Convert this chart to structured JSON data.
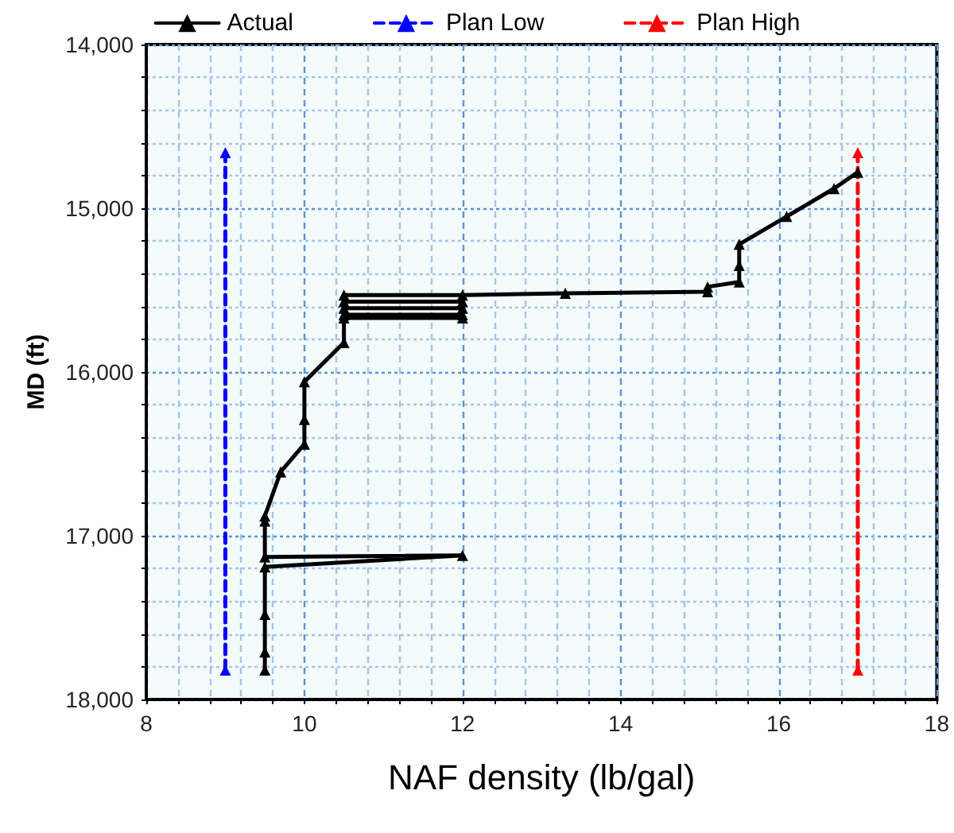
{
  "chart_data": {
    "type": "line",
    "xlabel": "NAF density (lb/gal)",
    "ylabel": "MD (ft)",
    "xlim": [
      8,
      18
    ],
    "xticks": [
      8,
      {
        "value": 8.4,
        "label": null
      },
      {
        "value": 8.8,
        "label": null
      },
      {
        "value": 9.2,
        "label": null
      },
      {
        "value": 9.6,
        "label": null
      },
      10,
      {
        "value": 10.4,
        "label": null
      },
      {
        "value": 10.8,
        "label": null
      },
      {
        "value": 11.2,
        "label": null
      },
      {
        "value": 11.6,
        "label": null
      },
      12,
      {
        "value": 12.4,
        "label": null
      },
      {
        "value": 12.8,
        "label": null
      },
      {
        "value": 13.2,
        "label": null
      },
      {
        "value": 13.6,
        "label": null
      },
      14,
      {
        "value": 14.4,
        "label": null
      },
      {
        "value": 14.8,
        "label": null
      },
      {
        "value": 15.2,
        "label": null
      },
      {
        "value": 15.6,
        "label": null
      },
      16,
      {
        "value": 16.4,
        "label": null
      },
      {
        "value": 16.8,
        "label": null
      },
      {
        "value": 17.2,
        "label": null
      },
      {
        "value": 17.6,
        "label": null
      },
      18
    ],
    "ylim": [
      18000,
      14000
    ],
    "yticks": [
      {
        "value": 14000,
        "label": "14,000"
      },
      {
        "value": 14200,
        "label": null
      },
      {
        "value": 14400,
        "label": null
      },
      {
        "value": 14600,
        "label": null
      },
      {
        "value": 14800,
        "label": null
      },
      {
        "value": 15000,
        "label": "15,000"
      },
      {
        "value": 15200,
        "label": null
      },
      {
        "value": 15400,
        "label": null
      },
      {
        "value": 15600,
        "label": null
      },
      {
        "value": 15800,
        "label": null
      },
      {
        "value": 16000,
        "label": "16,000"
      },
      {
        "value": 16200,
        "label": null
      },
      {
        "value": 16400,
        "label": null
      },
      {
        "value": 16600,
        "label": null
      },
      {
        "value": 16800,
        "label": null
      },
      {
        "value": 17000,
        "label": "17,000"
      },
      {
        "value": 17200,
        "label": null
      },
      {
        "value": 17400,
        "label": null
      },
      {
        "value": 17600,
        "label": null
      },
      {
        "value": 17800,
        "label": null
      },
      {
        "value": 18000,
        "label": "18,000"
      }
    ],
    "grid": true,
    "legend": "top",
    "marker": "triangle",
    "series": [
      {
        "name": "Actual",
        "color": "#000000",
        "line_style": "solid",
        "x": [
          17.0,
          16.7,
          16.1,
          15.5,
          15.5,
          15.5,
          15.1,
          15.1,
          13.3,
          12,
          10.5,
          10.5,
          12,
          12,
          10.5,
          10.5,
          12,
          12,
          10.5,
          10.5,
          10.0,
          10.0,
          10.0,
          9.7,
          9.5,
          9.5,
          9.5,
          12,
          9.5,
          9.5,
          9.5,
          9.5
        ],
        "values": [
          14780,
          14880,
          15050,
          15220,
          15350,
          15450,
          15480,
          15510,
          15520,
          15530,
          15530,
          15570,
          15570,
          15610,
          15610,
          15650,
          15650,
          15670,
          15670,
          15820,
          16060,
          16290,
          16440,
          16610,
          16880,
          16910,
          17130,
          17120,
          17190,
          17480,
          17710,
          17820
        ]
      },
      {
        "name": "Plan Low",
        "color": "#0000ff",
        "line_style": "dashed",
        "x": [
          9,
          9
        ],
        "values": [
          17820,
          14660
        ]
      },
      {
        "name": "Plan High",
        "color": "#ff0000",
        "line_style": "dashed",
        "x": [
          17,
          17
        ],
        "values": [
          17820,
          14660
        ]
      }
    ]
  }
}
